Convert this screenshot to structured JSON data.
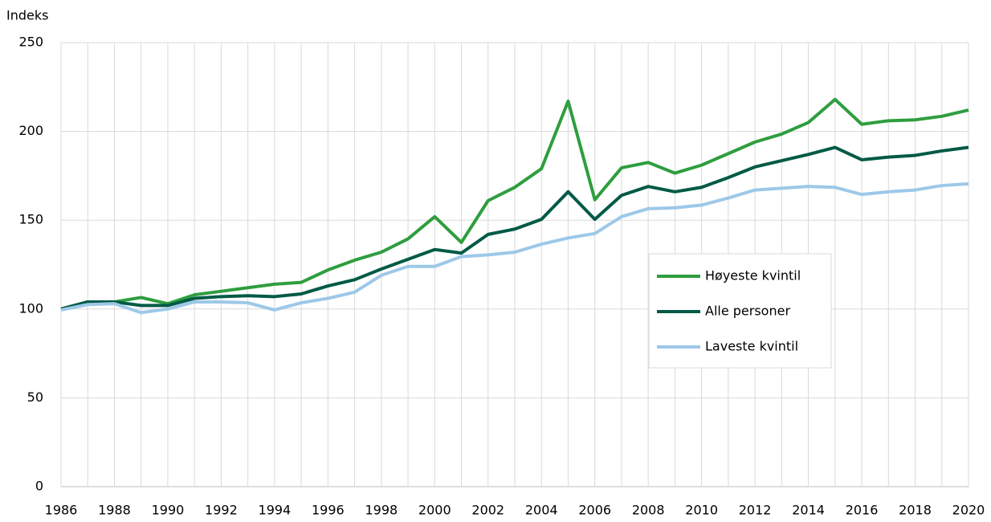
{
  "chart_data": {
    "type": "line",
    "y_axis_label": "Indeks",
    "categories": [
      "1986",
      null,
      "1988",
      null,
      "1990",
      null,
      "1992",
      null,
      "1994",
      null,
      "1996",
      null,
      "1998",
      null,
      "2000",
      null,
      "2002",
      null,
      "2004",
      null,
      "2006",
      null,
      "2008",
      null,
      "2010",
      null,
      "2012",
      null,
      "2014",
      null,
      "2016",
      null,
      "2018",
      null,
      "2020"
    ],
    "series": [
      {
        "name": "Høyeste kvintil",
        "color": "#2e9e3e",
        "values": [
          100,
          104,
          104,
          106.5,
          103,
          108,
          110,
          112,
          114,
          115,
          122,
          127.5,
          132,
          139.5,
          152,
          137.5,
          161,
          168.5,
          179,
          217,
          161.5,
          179.5,
          182.5,
          176.5,
          181,
          187.5,
          194,
          198.5,
          205,
          218,
          204,
          206,
          206.5,
          208.5,
          212
        ]
      },
      {
        "name": "Alle personer",
        "color": "#005a46",
        "values": [
          100,
          104,
          104,
          102,
          102,
          106,
          107,
          107.5,
          107,
          108.5,
          113,
          116.5,
          122.5,
          128,
          133.5,
          131.5,
          142,
          145,
          150.5,
          166,
          150.5,
          164,
          169,
          166,
          168.5,
          174,
          180,
          183.5,
          187,
          191,
          184,
          185.5,
          186.5,
          189,
          191
        ]
      },
      {
        "name": "Laveste kvintil",
        "color": "#9dc8e8",
        "values": [
          99.5,
          102.5,
          103,
          98,
          100,
          104,
          104,
          103.5,
          99.5,
          103.5,
          106,
          109.5,
          119,
          124,
          124,
          129.5,
          130.5,
          132,
          136.5,
          140,
          142.5,
          152,
          156.5,
          157,
          158.5,
          162.5,
          167,
          168,
          169,
          168.5,
          164.5,
          166,
          167,
          169.5,
          170.5
        ]
      }
    ],
    "ylim": [
      0,
      250
    ],
    "yticks": [
      0,
      50,
      100,
      150,
      200,
      250
    ],
    "grid": true,
    "legend": "right"
  }
}
